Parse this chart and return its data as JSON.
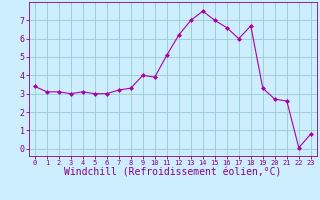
{
  "x": [
    0,
    1,
    2,
    3,
    4,
    5,
    6,
    7,
    8,
    9,
    10,
    11,
    12,
    13,
    14,
    15,
    16,
    17,
    18,
    19,
    20,
    21,
    22,
    23
  ],
  "y": [
    3.4,
    3.1,
    3.1,
    3.0,
    3.1,
    3.0,
    3.0,
    3.2,
    3.3,
    4.0,
    3.9,
    5.1,
    6.2,
    7.0,
    7.5,
    7.0,
    6.6,
    6.0,
    6.7,
    3.3,
    2.7,
    2.6,
    0.05,
    0.8
  ],
  "line_color": "#aa00aa",
  "marker": "D",
  "marker_size": 2,
  "bg_color": "#cceeff",
  "grid_color": "#99cccc",
  "xlabel": "Windchill (Refroidissement éolien,°C)",
  "xlabel_fontsize": 7,
  "xtick_labels": [
    "0",
    "1",
    "2",
    "3",
    "4",
    "5",
    "6",
    "7",
    "8",
    "9",
    "10",
    "11",
    "12",
    "13",
    "14",
    "15",
    "16",
    "17",
    "18",
    "19",
    "20",
    "21",
    "22",
    "23"
  ],
  "ytick_labels": [
    "0",
    "1",
    "2",
    "3",
    "4",
    "5",
    "6",
    "7"
  ],
  "ylim": [
    -0.4,
    8.0
  ],
  "xlim": [
    -0.5,
    23.5
  ],
  "tick_color": "#880088",
  "spine_color": "#880088"
}
